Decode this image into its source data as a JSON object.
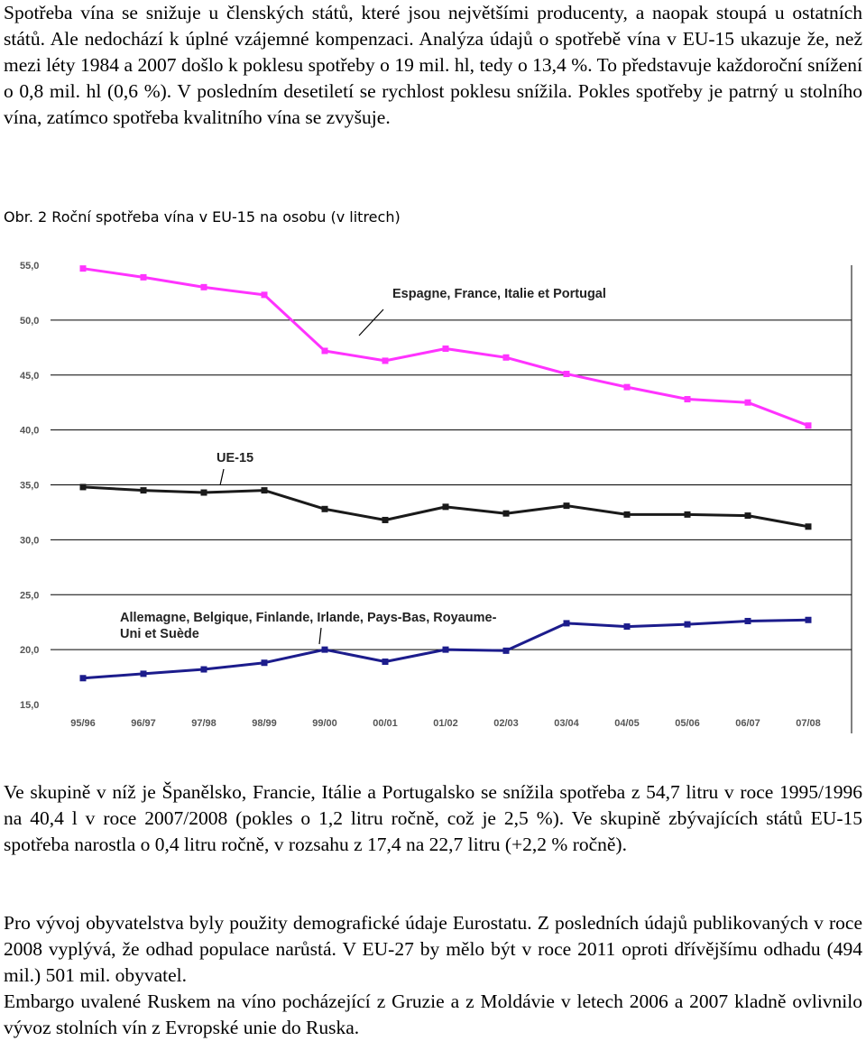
{
  "text": {
    "p1": "Spotřeba vína se snižuje u členských států, které jsou největšími producenty, a naopak stoupá u ostatních států. Ale nedochází k úplné vzájemné kompenzaci. Analýza údajů o spotřebě vína v EU-15 ukazuje že, než mezi léty 1984 a 2007 došlo k poklesu spotřeby o 19 mil. hl, tedy o 13,4 %. To představuje každoroční snížení o 0,8 mil. hl (0,6 %). V posledním desetiletí se rychlost poklesu snížila. Pokles spotřeby je patrný u stolního vína, zatímco spotřeba kvalitního vína se zvyšuje.",
    "caption": "Obr. 2 Roční spotřeba vína v EU-15 na osobu (v litrech)",
    "p2": "Ve skupině v níž je Španělsko, Francie, Itálie a Portugalsko se snížila spotřeba z 54,7 litru v roce 1995/1996 na 40,4 l v roce 2007/2008 (pokles o 1,2 litru ročně, což je 2,5 %). Ve skupině zbývajících států EU-15 spotřeba narostla o 0,4 litru ročně, v rozsahu z 17,4 na 22,7 litru (+2,2 % ročně).",
    "p3": "Pro vývoj obyvatelstva byly použity demografické údaje Eurostatu. Z posledních údajů publikovaných v roce 2008 vyplývá, že odhad populace narůstá. V EU-27 by mělo být v roce 2011 oproti dřívějšímu odhadu (494 mil.) 501 mil. obyvatel.",
    "p4": "Embargo uvalené Ruskem na víno pocházející z Gruzie a z Moldávie v letech 2006 a 2007 kladně ovlivnilo vývoz stolních vín z Evropské unie do Ruska."
  },
  "chart_data": {
    "type": "line",
    "x": [
      "95/96",
      "96/97",
      "97/98",
      "98/99",
      "99/00",
      "00/01",
      "01/02",
      "02/03",
      "03/04",
      "04/05",
      "05/06",
      "06/07",
      "07/08"
    ],
    "ylim": [
      15,
      55
    ],
    "yticks": [
      "55,0",
      "50,0",
      "45,0",
      "40,0",
      "35,0",
      "30,0",
      "25,0",
      "20,0",
      "15,0"
    ],
    "grid": "horizontal",
    "series": [
      {
        "name": "Espagne, France, Italie et Portugal",
        "color": "#ff33ff",
        "values": [
          54.7,
          53.9,
          53.0,
          52.3,
          47.2,
          46.3,
          47.4,
          46.6,
          45.1,
          43.9,
          42.8,
          42.5,
          40.4
        ]
      },
      {
        "name": "UE-15",
        "color": "#1a1a1a",
        "values": [
          34.8,
          34.5,
          34.3,
          34.5,
          32.8,
          31.8,
          33.0,
          32.4,
          33.1,
          32.3,
          32.3,
          32.2,
          31.2
        ]
      },
      {
        "name": "Allemagne, Belgique, Finlande, Irlande, Pays-Bas, Royaume-Uni et Suède",
        "color": "#1c1c8c",
        "values": [
          17.4,
          17.8,
          18.2,
          18.8,
          20.0,
          18.9,
          20.0,
          19.9,
          22.4,
          22.1,
          22.3,
          22.6,
          22.7
        ]
      }
    ],
    "annotations": [
      "Espagne, France, Italie et Portugal",
      "UE-15",
      "Allemagne, Belgique, Finlande, Irlande, Pays-Bas, Royaume-",
      "Uni et Suède"
    ]
  }
}
